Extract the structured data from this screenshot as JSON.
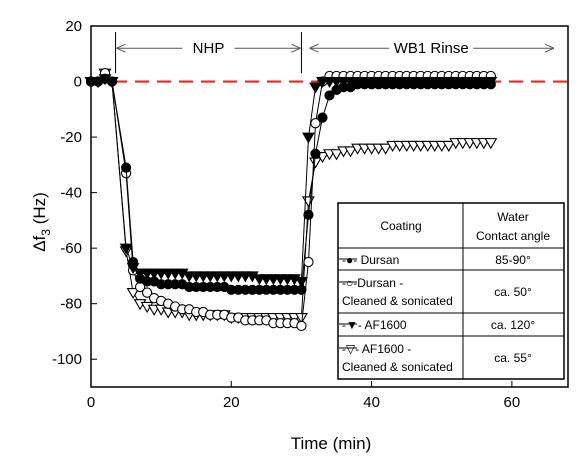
{
  "chart_data": {
    "type": "scatter",
    "xlabel": "Time (min)",
    "ylabel_symbol": "Δf",
    "ylabel_sub": "3",
    "ylabel_unit": " (Hz)",
    "xlim": [
      0,
      68
    ],
    "ylim": [
      -110,
      20
    ],
    "xticks": [
      0,
      20,
      40,
      60
    ],
    "yticks": [
      20,
      0,
      -20,
      -40,
      -60,
      -80,
      -100
    ],
    "grid": false,
    "reference_line": {
      "y": 0,
      "style": "dashed",
      "color": "#e8281e"
    },
    "annotations": [
      {
        "text": "NHP",
        "x_from": 3.5,
        "x_to": 30,
        "y": 12
      },
      {
        "text": "WB1 Rinse",
        "x_from": 31,
        "x_to": 66,
        "y": 12
      }
    ],
    "legend": {
      "placement": "bottom-right",
      "header_coating": "Coating",
      "header_angle_line1": "Water",
      "header_angle_line2": "Contact angle",
      "rows": [
        {
          "line1": "-●- Dursan",
          "line2": "",
          "angle": "85-90°"
        },
        {
          "line1": "-○-Dursan -",
          "line2": "Cleaned & sonicated",
          "angle": "ca. 50°"
        },
        {
          "line1": "-▼- AF1600",
          "line2": "",
          "angle": "ca. 120°"
        },
        {
          "line1": "-▽- AF1600 -",
          "line2": "Cleaned & sonicated",
          "angle": "ca. 55°"
        }
      ]
    },
    "series": [
      {
        "marker": "filled-circle",
        "x": [
          0,
          1,
          2,
          3,
          5,
          6,
          7,
          8,
          9,
          10,
          11,
          12,
          13,
          14,
          15,
          16,
          17,
          18,
          19,
          20,
          21,
          22,
          23,
          24,
          25,
          26,
          27,
          28,
          29,
          30,
          31,
          32,
          33,
          34,
          35,
          36,
          37,
          38,
          39,
          40,
          41,
          42,
          43,
          44,
          45,
          46,
          47,
          48,
          49,
          50,
          51,
          52,
          53,
          54,
          55,
          56,
          57
        ],
        "y": [
          0,
          0,
          1,
          0,
          -31,
          -65,
          -71,
          -72,
          -72,
          -73,
          -73,
          -73,
          -73,
          -74,
          -74,
          -74,
          -74,
          -74,
          -74,
          -75,
          -75,
          -75,
          -75,
          -75,
          -75,
          -75,
          -75,
          -75,
          -75,
          -75,
          -48,
          -26,
          -13,
          -5,
          -3,
          -2,
          -2,
          -1,
          -1,
          -1,
          -1,
          -1,
          -1,
          -1,
          -1,
          -1,
          -1,
          -1,
          -1,
          -1,
          -1,
          -1,
          -1,
          -1,
          -1,
          -1,
          -1
        ]
      },
      {
        "marker": "open-circle",
        "x": [
          0,
          1,
          2,
          3,
          5,
          6,
          7,
          8,
          9,
          10,
          11,
          12,
          13,
          14,
          15,
          16,
          17,
          18,
          19,
          20,
          21,
          22,
          23,
          24,
          25,
          26,
          27,
          28,
          29,
          30,
          31,
          32,
          33,
          34,
          35,
          36,
          37,
          38,
          39,
          40,
          41,
          42,
          43,
          44,
          45,
          46,
          47,
          48,
          49,
          50,
          51,
          52,
          53,
          54,
          55,
          56,
          57
        ],
        "y": [
          0,
          0,
          3,
          0,
          -33,
          -68,
          -74,
          -76,
          -78,
          -79,
          -80,
          -81,
          -82,
          -82,
          -83,
          -83,
          -84,
          -84,
          -84,
          -85,
          -85,
          -86,
          -86,
          -86,
          -86,
          -87,
          -87,
          -87,
          -87,
          -88,
          -65,
          -15,
          0,
          2,
          2,
          2,
          2,
          2,
          2,
          2,
          2,
          2,
          2,
          2,
          2,
          2,
          2,
          2,
          2,
          2,
          2,
          2,
          2,
          2,
          2,
          2,
          2
        ]
      },
      {
        "marker": "filled-triangle-down",
        "x": [
          0,
          1,
          2,
          3,
          5,
          6,
          7,
          8,
          9,
          10,
          11,
          12,
          13,
          14,
          15,
          16,
          17,
          18,
          19,
          20,
          21,
          22,
          23,
          24,
          25,
          26,
          27,
          28,
          29,
          30,
          31,
          32,
          33,
          34,
          35,
          36,
          37,
          38,
          39,
          40,
          41,
          42,
          43,
          44,
          45,
          46,
          47,
          48,
          49,
          50,
          51,
          52,
          53,
          54,
          55,
          56,
          57
        ],
        "y": [
          0,
          0,
          1,
          0,
          -60,
          -67,
          -69,
          -69,
          -69,
          -69,
          -69,
          -69,
          -69,
          -70,
          -70,
          -70,
          -70,
          -70,
          -70,
          -70,
          -70,
          -70,
          -70,
          -71,
          -71,
          -71,
          -71,
          -71,
          -71,
          -72,
          -20,
          -2,
          0,
          0,
          0,
          0,
          0,
          0,
          0,
          0,
          0,
          0,
          0,
          0,
          0,
          0,
          0,
          0,
          0,
          0,
          0,
          0,
          0,
          0,
          0,
          0,
          0
        ]
      },
      {
        "marker": "open-triangle-down",
        "x": [
          0,
          1,
          2,
          3,
          5,
          6,
          7,
          8,
          9,
          10,
          11,
          12,
          13,
          14,
          15,
          16,
          17,
          18,
          19,
          20,
          21,
          22,
          23,
          24,
          25,
          26,
          27,
          28,
          29,
          30,
          31,
          32,
          33,
          34,
          35,
          36,
          37,
          38,
          39,
          40,
          41,
          42,
          43,
          44,
          45,
          46,
          47,
          48,
          49,
          50,
          51,
          52,
          53,
          54,
          55,
          56,
          57
        ],
        "y": [
          0,
          0,
          3,
          0,
          -61,
          -76,
          -80,
          -81,
          -82,
          -82,
          -83,
          -83,
          -83,
          -84,
          -84,
          -84,
          -84,
          -84,
          -84,
          -85,
          -85,
          -85,
          -85,
          -85,
          -85,
          -85,
          -85,
          -85,
          -85,
          -85,
          -43,
          -29,
          -27,
          -26,
          -26,
          -25,
          -25,
          -24,
          -24,
          -24,
          -24,
          -24,
          -23,
          -23,
          -23,
          -23,
          -23,
          -23,
          -23,
          -23,
          -23,
          -22,
          -22,
          -22,
          -22,
          -22,
          -22
        ]
      }
    ]
  }
}
